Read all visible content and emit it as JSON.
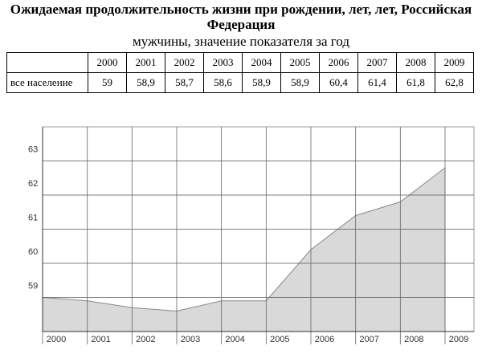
{
  "header": {
    "title": "Ожидаемая продолжительность жизни при рождении, лет, лет, Российская Федерация",
    "subtitle": "мужчины, значение показателя за год"
  },
  "table": {
    "columns": [
      "2000",
      "2001",
      "2002",
      "2003",
      "2004",
      "2005",
      "2006",
      "2007",
      "2008",
      "2009"
    ],
    "row_label": "все население",
    "cells": [
      "59",
      "58,9",
      "58,7",
      "58,6",
      "58,9",
      "58,9",
      "60,4",
      "61,4",
      "61,8",
      "62,8"
    ]
  },
  "chart_data": {
    "type": "area",
    "categories": [
      "2000",
      "2001",
      "2002",
      "2003",
      "2004",
      "2005",
      "2006",
      "2007",
      "2008",
      "2009"
    ],
    "values": [
      59,
      58.9,
      58.7,
      58.6,
      58.9,
      58.9,
      60.4,
      61.4,
      61.8,
      62.8
    ],
    "color": "#d9d9d9",
    "ylim": [
      58,
      64
    ],
    "yticks": [
      59,
      60,
      61,
      62,
      63
    ],
    "grid": true
  }
}
